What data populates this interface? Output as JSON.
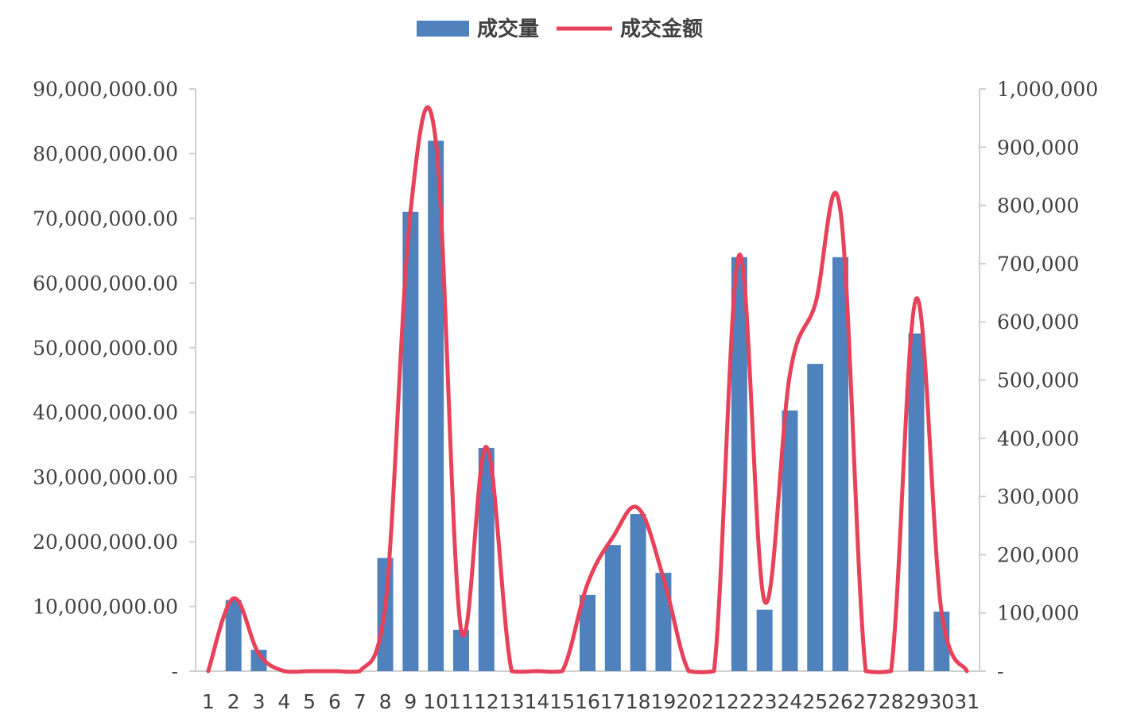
{
  "chart_data": {
    "type": "bar",
    "categories": [
      "1",
      "2",
      "3",
      "4",
      "5",
      "6",
      "7",
      "8",
      "9",
      "10",
      "11",
      "12",
      "13",
      "14",
      "15",
      "16",
      "17",
      "18",
      "19",
      "20",
      "21",
      "22",
      "23",
      "24",
      "25",
      "26",
      "27",
      "28",
      "29",
      "30",
      "31"
    ],
    "series": [
      {
        "name": "成交量",
        "type": "bar",
        "axis": "left",
        "color": "#4f81bd",
        "values": [
          0,
          11000000,
          3300000,
          0,
          0,
          0,
          0,
          17500000,
          71000000,
          82000000,
          6400000,
          34500000,
          0,
          0,
          0,
          11800000,
          19500000,
          24300000,
          15200000,
          0,
          0,
          64000000,
          9500000,
          40300000,
          47500000,
          64000000,
          0,
          0,
          52200000,
          9200000,
          0
        ]
      },
      {
        "name": "成交金额",
        "type": "line",
        "axis": "right",
        "color": "#e8415a",
        "values": [
          0,
          125000,
          30000,
          0,
          0,
          0,
          0,
          110000,
          790000,
          910000,
          70000,
          385000,
          0,
          0,
          0,
          150000,
          230000,
          280000,
          160000,
          0,
          0,
          715000,
          120000,
          510000,
          630000,
          790000,
          0,
          0,
          640000,
          100000,
          0
        ]
      }
    ],
    "y_left": {
      "ylim": [
        0,
        90000000
      ],
      "tick_labels": [
        "-",
        "10,000,000.00",
        "20,000,000.00",
        "30,000,000.00",
        "40,000,000.00",
        "50,000,000.00",
        "60,000,000.00",
        "70,000,000.00",
        "80,000,000.00",
        "90,000,000.00"
      ]
    },
    "y_right": {
      "ylim": [
        0,
        1000000
      ],
      "tick_labels": [
        "-",
        "100,000",
        "200,000",
        "300,000",
        "400,000",
        "500,000",
        "600,000",
        "700,000",
        "800,000",
        "900,000",
        "1,000,000"
      ]
    },
    "legend_position": "top",
    "grid": false
  }
}
